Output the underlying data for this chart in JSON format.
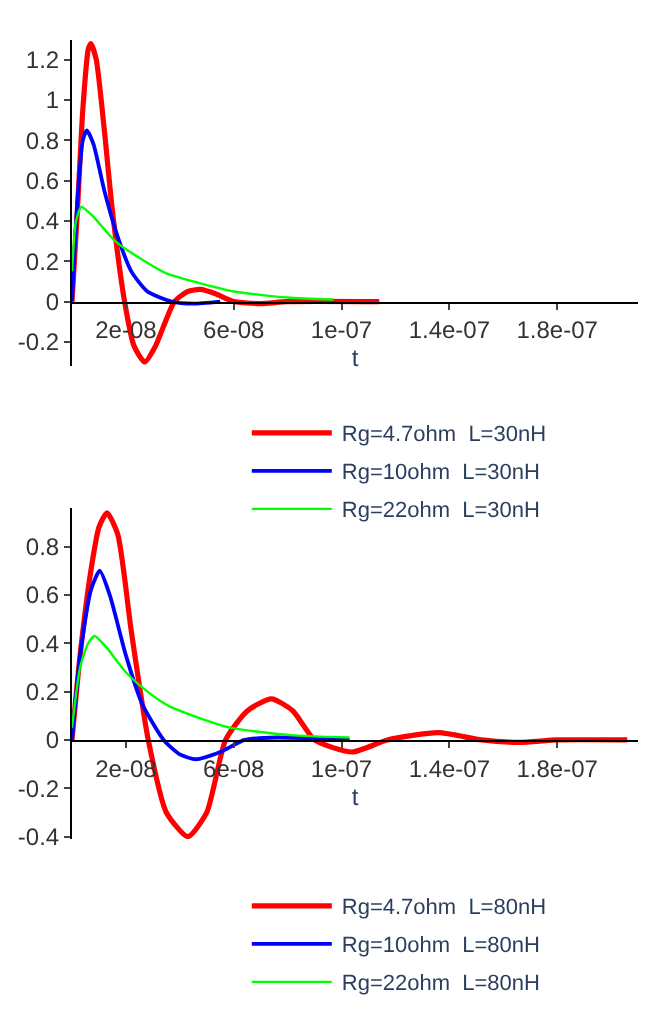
{
  "chart_data": [
    {
      "type": "line",
      "xlabel": "t",
      "xlim": [
        0,
        2.1e-07
      ],
      "ylim": [
        -0.32,
        1.3
      ],
      "legend": "bottom",
      "xticks": [
        {
          "value": 2e-08,
          "label": "2e-08"
        },
        {
          "value": 6e-08,
          "label": "6e-08"
        },
        {
          "value": 1e-07,
          "label": "1e-07"
        },
        {
          "value": 1.4e-07,
          "label": "1.4e-07"
        },
        {
          "value": 1.8e-07,
          "label": "1.8e-07"
        }
      ],
      "yticks": [
        -0.2,
        0,
        0.2,
        0.4,
        0.6,
        0.8,
        1,
        1.2
      ],
      "series": [
        {
          "name": "Rg=4.7ohm  L=30nH",
          "color": "#ff0000",
          "x": [
            0,
            2e-09,
            4e-09,
            6e-09,
            7e-09,
            9e-09,
            1.2e-08,
            1.5e-08,
            1.95e-08,
            2.3e-08,
            2.7e-08,
            3.1e-08,
            3.8e-08,
            4.3e-08,
            4.75e-08,
            5.3e-08,
            6e-08,
            7e-08,
            8e-08,
            1.14e-07
          ],
          "values": [
            0,
            0.45,
            0.95,
            1.25,
            1.28,
            1.2,
            0.85,
            0.45,
            0,
            -0.22,
            -0.3,
            -0.22,
            0,
            0.05,
            0.06,
            0.04,
            0,
            -0.01,
            0,
            0
          ]
        },
        {
          "name": "Rg=10ohm  L=30nH",
          "color": "#0000ff",
          "x": [
            0,
            2e-09,
            4e-09,
            5.5e-09,
            8e-09,
            1.2e-08,
            1.7e-08,
            2.2e-08,
            2.8e-08,
            3.7e-08,
            4.5e-08,
            5.5e-08
          ],
          "values": [
            0,
            0.5,
            0.8,
            0.85,
            0.78,
            0.55,
            0.32,
            0.15,
            0.05,
            0,
            -0.01,
            0
          ]
        },
        {
          "name": "Rg=22ohm  L=30nH",
          "color": "#00ff00",
          "x": [
            0,
            1.5e-09,
            3.5e-09,
            8e-09,
            1.6e-08,
            2.7e-08,
            3.5e-08,
            4.5e-08,
            6e-08,
            8e-08,
            9.7e-08
          ],
          "values": [
            0.15,
            0.4,
            0.47,
            0.42,
            0.3,
            0.2,
            0.14,
            0.1,
            0.05,
            0.02,
            0.01
          ]
        }
      ]
    },
    {
      "type": "line",
      "xlabel": "t",
      "xlim": [
        0,
        2.1e-07
      ],
      "ylim": [
        -0.41,
        0.96
      ],
      "legend": "bottom",
      "xticks": [
        {
          "value": 2e-08,
          "label": "2e-08"
        },
        {
          "value": 6e-08,
          "label": "6e-08"
        },
        {
          "value": 1e-07,
          "label": "1e-07"
        },
        {
          "value": 1.4e-07,
          "label": "1.4e-07"
        },
        {
          "value": 1.8e-07,
          "label": "1.8e-07"
        }
      ],
      "yticks": [
        -0.4,
        -0.2,
        0,
        0.2,
        0.4,
        0.6,
        0.8
      ],
      "series": [
        {
          "name": "Rg=4.7ohm  L=80nH",
          "color": "#ff0000",
          "x": [
            0,
            3e-09,
            7e-09,
            1e-08,
            1.3e-08,
            1.7e-08,
            2.2e-08,
            2.83e-08,
            3.5e-08,
            4.3e-08,
            5e-08,
            5.7e-08,
            6.5e-08,
            7.4e-08,
            8.2e-08,
            9e-08,
            1.04e-07,
            1.17e-07,
            1.36e-07,
            1.52e-07,
            1.66e-07,
            1.8e-07,
            2.06e-07
          ],
          "values": [
            0,
            0.35,
            0.7,
            0.88,
            0.94,
            0.85,
            0.45,
            0,
            -0.3,
            -0.4,
            -0.3,
            0,
            0.12,
            0.17,
            0.12,
            0,
            -0.05,
            0,
            0.03,
            0,
            -0.01,
            0,
            0
          ]
        },
        {
          "name": "Rg=10ohm  L=80nH",
          "color": "#0000ff",
          "x": [
            0,
            3e-09,
            7e-09,
            1.03e-08,
            1.4e-08,
            2e-08,
            2.6e-08,
            3.4e-08,
            4e-08,
            4.6e-08,
            5.5e-08,
            6.4e-08,
            7.6e-08,
            1.03e-07
          ],
          "values": [
            0,
            0.35,
            0.62,
            0.7,
            0.6,
            0.35,
            0.15,
            0,
            -0.06,
            -0.08,
            -0.05,
            0,
            0.01,
            0
          ]
        },
        {
          "name": "Rg=22ohm  L=80nH",
          "color": "#00ff00",
          "x": [
            0,
            3e-09,
            6e-09,
            8.4e-09,
            1.3e-08,
            2e-08,
            2.8e-08,
            3.6e-08,
            4.5e-08,
            5.9e-08,
            8.1e-08,
            1.03e-07
          ],
          "values": [
            0.05,
            0.3,
            0.4,
            0.43,
            0.38,
            0.28,
            0.2,
            0.14,
            0.1,
            0.05,
            0.02,
            0.01
          ]
        }
      ]
    }
  ]
}
